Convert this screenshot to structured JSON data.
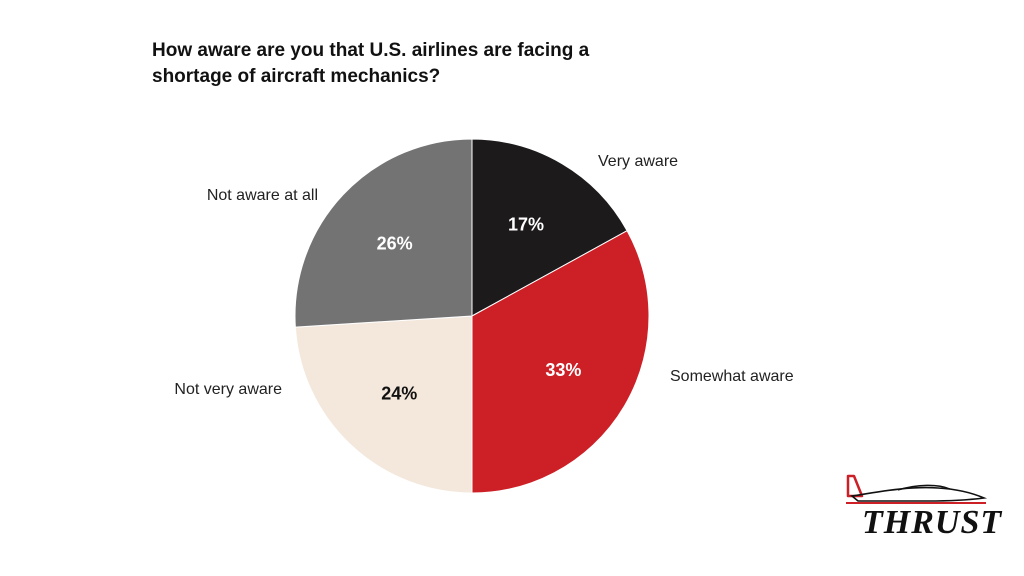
{
  "chart_data": {
    "type": "pie",
    "title": "How aware are you that U.S. airlines are facing a shortage of aircraft mechanics?",
    "slices": [
      {
        "label": "Very aware",
        "value": 17,
        "display": "17%",
        "color": "#1c1a1b",
        "text_color": "#ffffff"
      },
      {
        "label": "Somewhat aware",
        "value": 33,
        "display": "33%",
        "color": "#cc1f26",
        "text_color": "#ffffff"
      },
      {
        "label": "Not very aware",
        "value": 24,
        "display": "24%",
        "color": "#f4e8dd",
        "text_color": "#111111"
      },
      {
        "label": "Not aware at all",
        "value": 26,
        "display": "26%",
        "color": "#737373",
        "text_color": "#ffffff"
      }
    ],
    "start": "12 o'clock",
    "direction": "clockwise"
  },
  "logo": {
    "text": "THRUST",
    "accent_color": "#cc1f26"
  }
}
